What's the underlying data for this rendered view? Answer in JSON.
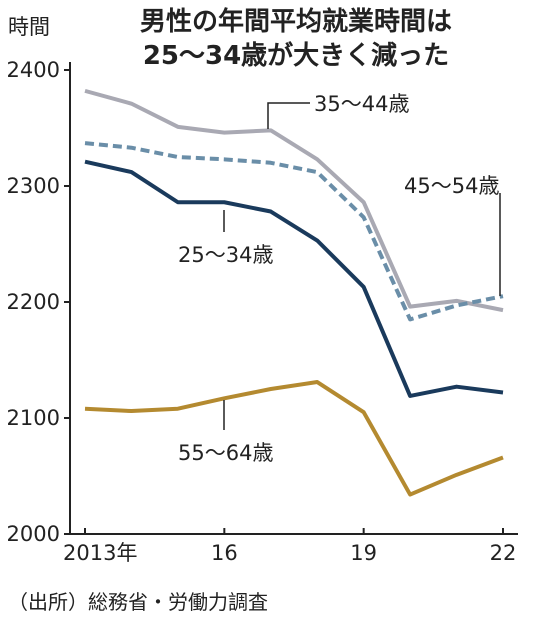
{
  "chart_data": {
    "type": "line",
    "title": [
      "男性の年間平均就業時間は",
      "25〜34歳が大きく減った"
    ],
    "ylabel": "時間",
    "xlabel": "",
    "x": [
      2013,
      2014,
      2015,
      2016,
      2017,
      2018,
      2019,
      2020,
      2021,
      2022
    ],
    "xticks": [
      {
        "value": 2013,
        "label": "2013年"
      },
      {
        "value": 2016,
        "label": "16"
      },
      {
        "value": 2019,
        "label": "19"
      },
      {
        "value": 2022,
        "label": "22"
      }
    ],
    "ylim": [
      2000,
      2400
    ],
    "yticks": [
      2000,
      2100,
      2200,
      2300,
      2400
    ],
    "grid": false,
    "series": [
      {
        "name": "35〜44歳",
        "color": "#a9a9b3",
        "dashed": false,
        "values": [
          2382,
          2371,
          2351,
          2346,
          2348,
          2323,
          2286,
          2196,
          2201,
          2193
        ]
      },
      {
        "name": "45〜54歳",
        "color": "#6a8ea8",
        "dashed": true,
        "values": [
          2337,
          2333,
          2325,
          2323,
          2320,
          2312,
          2273,
          2185,
          2197,
          2205
        ]
      },
      {
        "name": "25〜34歳",
        "color": "#1a3a5c",
        "dashed": false,
        "values": [
          2321,
          2312,
          2286,
          2286,
          2278,
          2253,
          2213,
          2119,
          2127,
          2122
        ]
      },
      {
        "name": "55〜64歳",
        "color": "#b48a30",
        "dashed": false,
        "values": [
          2108,
          2106,
          2108,
          2117,
          2125,
          2131,
          2105,
          2034,
          2051,
          2066
        ]
      }
    ],
    "source": "（出所）総務省・労働力調査"
  }
}
